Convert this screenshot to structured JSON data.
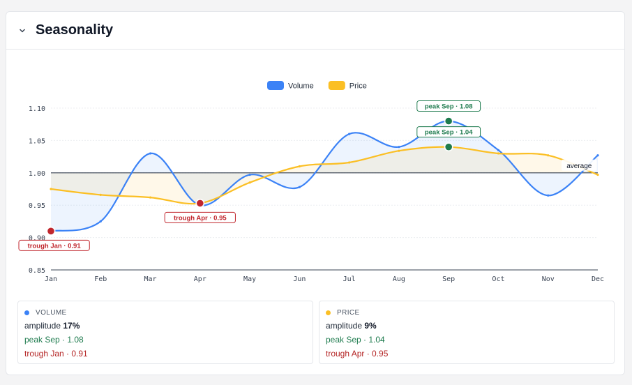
{
  "header": {
    "title": "Seasonality"
  },
  "chart_data": {
    "type": "line",
    "categories": [
      "Jan",
      "Feb",
      "Mar",
      "Apr",
      "May",
      "Jun",
      "Jul",
      "Aug",
      "Sep",
      "Oct",
      "Nov",
      "Dec"
    ],
    "series": [
      {
        "name": "Volume",
        "color": "#3b82f6",
        "values": [
          0.91,
          0.925,
          1.03,
          0.95,
          0.997,
          0.978,
          1.06,
          1.04,
          1.08,
          1.035,
          0.965,
          1.027
        ]
      },
      {
        "name": "Price",
        "color": "#fbbf24",
        "values": [
          0.975,
          0.966,
          0.962,
          0.953,
          0.985,
          1.01,
          1.016,
          1.034,
          1.04,
          1.03,
          1.027,
          0.997
        ]
      }
    ],
    "yticks": [
      "1.10",
      "1.05",
      "1.00",
      "0.95",
      "0.90",
      "0.85"
    ],
    "ylim": [
      0.85,
      1.1
    ],
    "reference_line": {
      "value": 1.0,
      "label": "average"
    },
    "annotations": [
      {
        "series": 0,
        "month": 8,
        "kind": "peak",
        "label": "peak Sep · 1.08"
      },
      {
        "series": 0,
        "month": 0,
        "kind": "trough",
        "label": "trough Jan · 0.91"
      },
      {
        "series": 1,
        "month": 8,
        "kind": "peak",
        "label": "peak Sep · 1.04"
      },
      {
        "series": 1,
        "month": 3,
        "kind": "trough",
        "label": "trough Apr · 0.95"
      }
    ],
    "legend_position": "top-center",
    "grid": true
  },
  "stats": [
    {
      "name": "VOLUME",
      "color": "#3b82f6",
      "amplitude_prefix": "amplitude",
      "amplitude_value": "17%",
      "peak": "peak Sep · 1.08",
      "trough": "trough Jan · 0.91"
    },
    {
      "name": "PRICE",
      "color": "#fbbf24",
      "amplitude_prefix": "amplitude",
      "amplitude_value": "9%",
      "peak": "peak Sep · 1.04",
      "trough": "trough Apr · 0.95"
    }
  ],
  "icons": {
    "collapse": "chevron-down-icon"
  }
}
